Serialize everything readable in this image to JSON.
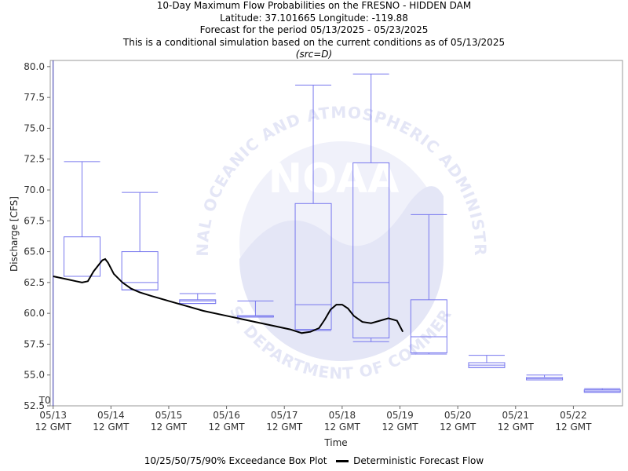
{
  "header": {
    "title": "10-Day Maximum Flow Probabilities on the FRESNO - HIDDEN DAM",
    "location": "Latitude: 37.101665 Longitude: -119.88",
    "period": "Forecast for the period 05/13/2025 - 05/23/2025",
    "conditions": "This is a conditional simulation based on the current conditions as of 05/13/2025",
    "source": "(src=D)"
  },
  "colors": {
    "box": "#7777ee",
    "t0_line": "#3333aa",
    "deterministic": "#000000",
    "watermark": "#e4e6f6"
  },
  "watermark": {
    "logo_text": "NOAA",
    "ring_text_top": "NATIONAL OCEANIC AND ATMOSPHERIC ADMINISTRATION",
    "ring_text_bottom": "U.S. DEPARTMENT OF COMMERCE"
  },
  "chart_data": {
    "type": "box",
    "xlabel": "Time",
    "ylabel": "Discharge [CFS]",
    "ylim": [
      52.5,
      80.5
    ],
    "yticks": [
      "52.5",
      "55.0",
      "57.5",
      "60.0",
      "62.5",
      "65.0",
      "67.5",
      "70.0",
      "72.5",
      "75.0",
      "77.5",
      "80.0"
    ],
    "xlim": [
      -0.05,
      9.85
    ],
    "xticks": [
      {
        "x": 0,
        "date": "05/13",
        "time": "12 GMT"
      },
      {
        "x": 1,
        "date": "05/14",
        "time": "12 GMT"
      },
      {
        "x": 2,
        "date": "05/15",
        "time": "12 GMT"
      },
      {
        "x": 3,
        "date": "05/16",
        "time": "12 GMT"
      },
      {
        "x": 4,
        "date": "05/17",
        "time": "12 GMT"
      },
      {
        "x": 5,
        "date": "05/18",
        "time": "12 GMT"
      },
      {
        "x": 6,
        "date": "05/19",
        "time": "12 GMT"
      },
      {
        "x": 7,
        "date": "05/20",
        "time": "12 GMT"
      },
      {
        "x": 8,
        "date": "05/21",
        "time": "12 GMT"
      },
      {
        "x": 9,
        "date": "05/22",
        "time": "12 GMT"
      }
    ],
    "t0": {
      "x": 0,
      "label": "T0"
    },
    "boxes": [
      {
        "x": 0.5,
        "p10": 63.0,
        "p25": 63.0,
        "p50": 63.0,
        "p75": 66.2,
        "p90": 72.3
      },
      {
        "x": 1.5,
        "p10": 61.9,
        "p25": 61.9,
        "p50": 62.5,
        "p75": 65.0,
        "p90": 69.8
      },
      {
        "x": 2.5,
        "p10": 60.8,
        "p25": 60.8,
        "p50": 61.0,
        "p75": 61.1,
        "p90": 61.6
      },
      {
        "x": 3.5,
        "p10": 59.7,
        "p25": 59.7,
        "p50": 59.8,
        "p75": 59.8,
        "p90": 61.0
      },
      {
        "x": 4.5,
        "p10": 58.6,
        "p25": 58.7,
        "p50": 60.7,
        "p75": 68.9,
        "p90": 78.5
      },
      {
        "x": 5.5,
        "p10": 57.7,
        "p25": 58.0,
        "p50": 62.5,
        "p75": 72.2,
        "p90": 79.4
      },
      {
        "x": 6.5,
        "p10": 56.7,
        "p25": 56.8,
        "p50": 58.1,
        "p75": 61.1,
        "p90": 68.0
      },
      {
        "x": 7.5,
        "p10": 55.6,
        "p25": 55.6,
        "p50": 55.8,
        "p75": 56.0,
        "p90": 56.6
      },
      {
        "x": 8.5,
        "p10": 54.6,
        "p25": 54.6,
        "p50": 54.7,
        "p75": 54.8,
        "p90": 55.0
      },
      {
        "x": 9.5,
        "p10": 53.6,
        "p25": 53.6,
        "p50": 53.7,
        "p75": 53.8,
        "p90": 53.9
      }
    ],
    "deterministic": {
      "x": [
        0.0,
        0.2,
        0.4,
        0.5,
        0.6,
        0.7,
        0.85,
        0.9,
        0.95,
        1.05,
        1.2,
        1.35,
        1.5,
        1.7,
        2.0,
        2.3,
        2.6,
        3.0,
        3.4,
        3.8,
        4.1,
        4.3,
        4.45,
        4.6,
        4.7,
        4.8,
        4.9,
        5.0,
        5.1,
        5.2,
        5.35,
        5.5,
        5.65,
        5.8,
        5.95,
        6.05
      ],
      "y": [
        63.0,
        62.8,
        62.6,
        62.5,
        62.6,
        63.4,
        64.3,
        64.4,
        64.1,
        63.2,
        62.5,
        62.0,
        61.7,
        61.4,
        61.0,
        60.6,
        60.2,
        59.8,
        59.4,
        59.0,
        58.7,
        58.4,
        58.5,
        58.8,
        59.5,
        60.3,
        60.7,
        60.7,
        60.4,
        59.8,
        59.3,
        59.2,
        59.4,
        59.6,
        59.4,
        58.5
      ]
    }
  },
  "legend": {
    "box_label": "10/25/50/75/90% Exceedance Box Plot",
    "line_label": "Deterministic Forecast Flow"
  }
}
